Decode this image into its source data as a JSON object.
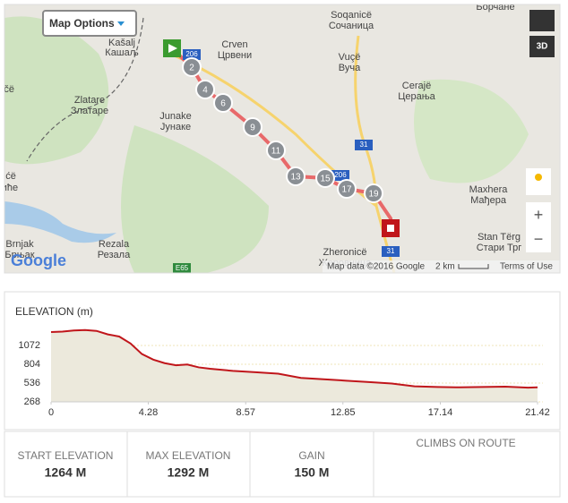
{
  "map": {
    "options_button": "Map Options",
    "view_3d": "3D",
    "places": [
      "Kašalj",
      "Кашаљ",
      "Crven",
      "Црвени",
      "Soqanicë",
      "Сочаница",
      "Vuçë",
      "Вуча",
      "Zlatare",
      "Златаре",
      "Junake",
      "Јунаке",
      "Cerajë",
      "Церања",
      "Maxhera",
      "Мађера",
      "Stan Tërg",
      "Стари Трг",
      "Zheronicë",
      "Жеровница",
      "Brnjak",
      "Брњак",
      "Rezala",
      "Резала",
      "Борчане",
      "Ričë",
      "ovićë",
      "овиће"
    ],
    "roads": [
      "206",
      "31",
      "206",
      "31",
      "E65"
    ],
    "markers": [
      "2",
      "4",
      "6",
      "9",
      "11",
      "13",
      "15",
      "17",
      "19"
    ],
    "logo": "Google",
    "attribution": "Map data ©2016 Google",
    "scale": "2 km",
    "terms": "Terms of Use"
  },
  "elevation": {
    "type": "line",
    "title": "ELEVATION (m)",
    "color": "#c0161b",
    "x": [
      0,
      0.5,
      1,
      1.5,
      2,
      2.5,
      3,
      3.5,
      4,
      4.5,
      5,
      5.5,
      6,
      6.5,
      7,
      8,
      9,
      10,
      11,
      12,
      13,
      14,
      15,
      16,
      17,
      18,
      19,
      20,
      21,
      21.42
    ],
    "values": [
      1264,
      1270,
      1285,
      1292,
      1280,
      1230,
      1200,
      1100,
      950,
      870,
      820,
      790,
      800,
      760,
      740,
      710,
      690,
      670,
      610,
      590,
      570,
      550,
      530,
      490,
      480,
      475,
      480,
      485,
      470,
      475
    ],
    "xlim": [
      0,
      21.42
    ],
    "ylim": [
      268,
      1340
    ],
    "xticks": [
      0,
      4.28,
      8.57,
      12.85,
      17.14,
      21.42
    ],
    "yticks": [
      268,
      536,
      804,
      1072
    ]
  },
  "stats": [
    {
      "label": "START ELEVATION",
      "value": "1264 M"
    },
    {
      "label": "MAX ELEVATION",
      "value": "1292 M"
    },
    {
      "label": "GAIN",
      "value": "150 M"
    },
    {
      "label": "CLIMBS ON ROUTE"
    }
  ]
}
